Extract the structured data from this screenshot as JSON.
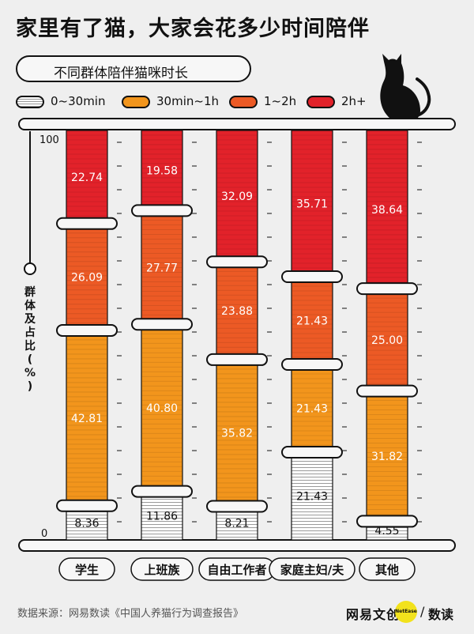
{
  "title": "家里有了猫，大家会花多少时间陪伴",
  "subtitle": "不同群体陪伴猫咪时长",
  "legend": [
    {
      "label": "0~30min",
      "color": "#ffffff"
    },
    {
      "label": "30min~1h",
      "color": "#f2951c"
    },
    {
      "label": "1~2h",
      "color": "#ec5a25"
    },
    {
      "label": "2h+",
      "color": "#e2222a"
    }
  ],
  "chart_data": {
    "type": "bar",
    "stacked": true,
    "title": "不同群体陪伴猫咪时长",
    "ylabel": "群体及占比(%)",
    "ylim": [
      0,
      100
    ],
    "yticks": [
      "0",
      "100"
    ],
    "categories": [
      "学生",
      "上班族",
      "自由工作者",
      "家庭主妇/夫",
      "其他"
    ],
    "series": [
      {
        "name": "0~30min",
        "color": "#ffffff",
        "values": [
          8.36,
          11.86,
          8.21,
          21.43,
          4.55
        ]
      },
      {
        "name": "30min~1h",
        "color": "#f2951c",
        "values": [
          42.81,
          40.8,
          35.82,
          21.43,
          31.82
        ]
      },
      {
        "name": "1~2h",
        "color": "#ec5a25",
        "values": [
          26.09,
          27.77,
          23.88,
          21.43,
          25.0
        ]
      },
      {
        "name": "2h+",
        "color": "#e2222a",
        "values": [
          22.74,
          19.58,
          32.09,
          35.71,
          38.64
        ]
      }
    ],
    "value_labels": [
      [
        "8.36",
        "42.81",
        "26.09",
        "22.74"
      ],
      [
        "11.86",
        "40.80",
        "27.77",
        "19.58"
      ],
      [
        "8.21",
        "35.82",
        "23.88",
        "32.09"
      ],
      [
        "21.43",
        "21.43",
        "21.43",
        "35.71"
      ],
      [
        "4.55",
        "31.82",
        "25.00",
        "38.64"
      ]
    ]
  },
  "footer": {
    "source": "数据来源：网易数读《中国人养猫行为调查报告》",
    "brand_main": "网易文创",
    "brand_badge": "NetEase",
    "brand_slash": "/",
    "brand_sub": "数读"
  },
  "decor": {
    "cat_icon": "cat-silhouette-icon"
  }
}
